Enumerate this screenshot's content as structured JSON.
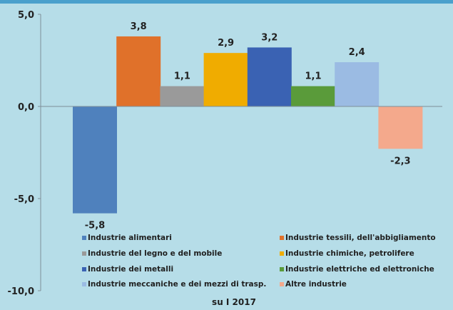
{
  "chart_data": {
    "type": "bar",
    "title": "",
    "xlabel": "su I 2017",
    "ylabel": "",
    "ylim": [
      -10,
      5
    ],
    "yticks": [
      5,
      0,
      -5,
      -10
    ],
    "ytick_labels": [
      "5,0",
      "0,0",
      "-5,0",
      "-10,0"
    ],
    "grid": false,
    "legend_position": "bottom",
    "series": [
      {
        "name": "Industrie alimentari",
        "value": -5.8,
        "label": "-5,8",
        "color": "#4f81bd"
      },
      {
        "name": "Industrie tessili, dell'abbigliamento",
        "value": 3.8,
        "label": "3,8",
        "color": "#e0712a"
      },
      {
        "name": "Industrie del legno e del mobile",
        "value": 1.1,
        "label": "1,1",
        "color": "#9a9a9a"
      },
      {
        "name": "Industrie chimiche, petrolifere",
        "value": 2.9,
        "label": "2,9",
        "color": "#f0ac00"
      },
      {
        "name": "Industrie dei metalli",
        "value": 3.2,
        "label": "3,2",
        "color": "#3a62b3"
      },
      {
        "name": "Industrie elettriche ed elettroniche",
        "value": 1.1,
        "label": "1,1",
        "color": "#5a9b3a"
      },
      {
        "name": "Industrie meccaniche e dei mezzi di trasp.",
        "value": 2.4,
        "label": "2,4",
        "color": "#9bbbe3"
      },
      {
        "name": "Altre industrie",
        "value": -2.3,
        "label": "-2,3",
        "color": "#f4a98c"
      }
    ]
  }
}
